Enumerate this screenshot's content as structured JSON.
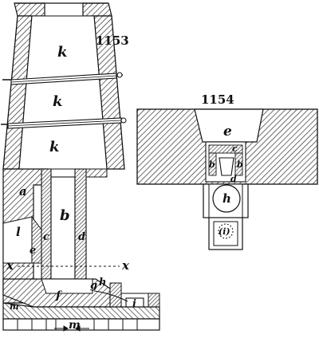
{
  "figures": [
    {
      "number": "1153"
    },
    {
      "number": "1154"
    }
  ],
  "labels_1153": {
    "k_top": "k",
    "k_mid": "k",
    "k_low": "k",
    "a": "a",
    "b": "b",
    "l": "l",
    "c": "c",
    "d": "d",
    "e": "e",
    "x_left": "x",
    "x_right": "x",
    "f": "f",
    "g": "g",
    "h": "h",
    "i": "i",
    "m_left": "m",
    "m_bottom": "m"
  },
  "labels_1154": {
    "e": "e",
    "c": "c",
    "b_left": "b",
    "b_right": "b",
    "d": "d",
    "h": "h",
    "i": "(i)"
  }
}
